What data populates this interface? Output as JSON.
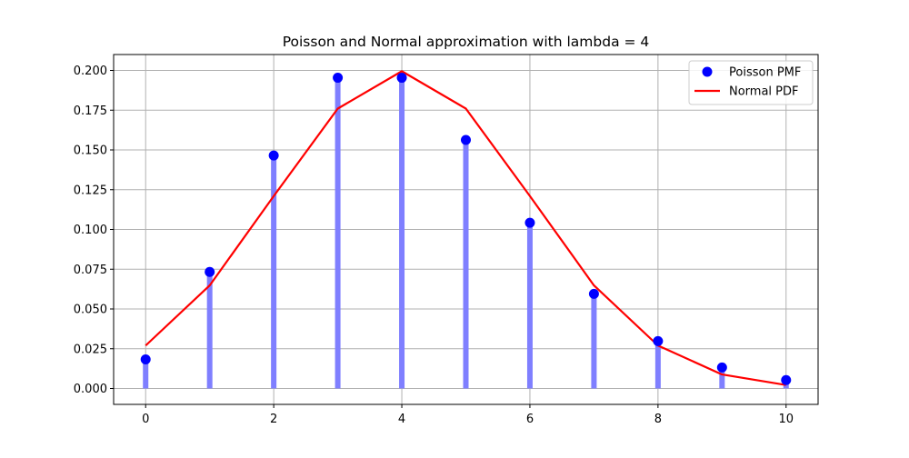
{
  "chart_data": {
    "type": "line",
    "title": "Poisson and Normal approximation with lambda = 4",
    "xlabel": "",
    "ylabel": "",
    "xlim": [
      -0.5,
      10.5
    ],
    "ylim": [
      -0.01,
      0.21
    ],
    "xticks": [
      0,
      2,
      4,
      6,
      8,
      10
    ],
    "xtick_labels": [
      "0",
      "2",
      "4",
      "6",
      "8",
      "10"
    ],
    "yticks": [
      0.0,
      0.025,
      0.05,
      0.075,
      0.1,
      0.125,
      0.15,
      0.175,
      0.2
    ],
    "ytick_labels": [
      "0.000",
      "0.025",
      "0.050",
      "0.075",
      "0.100",
      "0.125",
      "0.150",
      "0.175",
      "0.200"
    ],
    "grid": true,
    "legend_position": "top-right",
    "x": [
      0,
      1,
      2,
      3,
      4,
      5,
      6,
      7,
      8,
      9,
      10
    ],
    "series": [
      {
        "name": "Poisson PMF",
        "kind": "stem-markers",
        "color": "#0000ff",
        "stem_color": "#7f7fff",
        "values": [
          0.0183,
          0.0733,
          0.1465,
          0.1954,
          0.1954,
          0.1563,
          0.1042,
          0.0595,
          0.0298,
          0.0132,
          0.0053
        ]
      },
      {
        "name": "Normal PDF",
        "kind": "line",
        "color": "#ff0000",
        "values": [
          0.027,
          0.0648,
          0.121,
          0.176,
          0.1995,
          0.176,
          0.121,
          0.0648,
          0.027,
          0.0088,
          0.0022
        ]
      }
    ]
  }
}
